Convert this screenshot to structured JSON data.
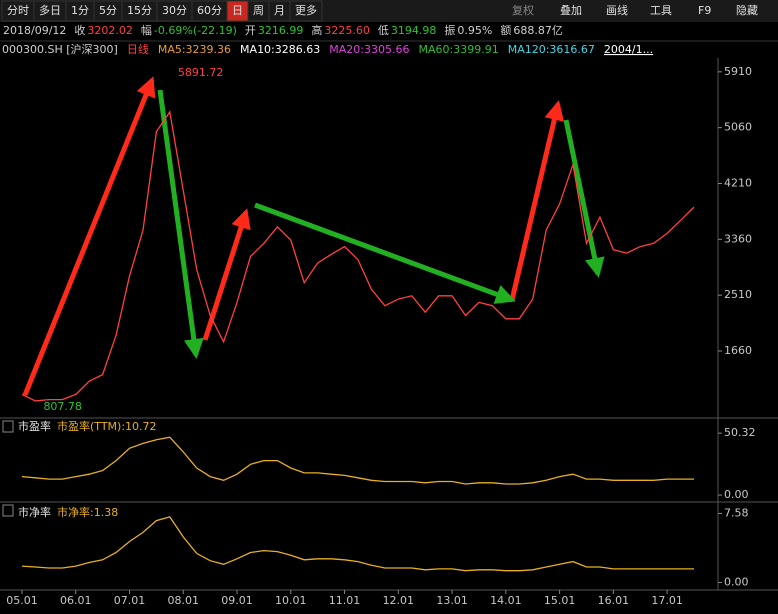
{
  "toolbar": {
    "left": [
      "分时",
      "多日",
      "1分",
      "5分",
      "15分",
      "30分",
      "60分",
      "日",
      "周",
      "月",
      "更多"
    ],
    "active": "日",
    "right": [
      "复权",
      "叠加",
      "画线",
      "工具",
      "F9",
      "隐藏"
    ]
  },
  "info_bar": [
    {
      "text": "2018/09/12",
      "color": "#d0d0d0"
    },
    {
      "text": "收",
      "color": "#d0d0d0"
    },
    {
      "text": "3202.02",
      "color": "#ff4040"
    },
    {
      "text": "幅",
      "color": "#d0d0d0"
    },
    {
      "text": "-0.69%(-22.19)",
      "color": "#2ec52e"
    },
    {
      "text": "开",
      "color": "#d0d0d0"
    },
    {
      "text": "3216.99",
      "color": "#2ec52e"
    },
    {
      "text": "高",
      "color": "#d0d0d0"
    },
    {
      "text": "3225.60",
      "color": "#ff4040"
    },
    {
      "text": "低",
      "color": "#d0d0d0"
    },
    {
      "text": "3194.98",
      "color": "#2ec52e"
    },
    {
      "text": "振",
      "color": "#d0d0d0"
    },
    {
      "text": "0.95%",
      "color": "#d0d0d0"
    },
    {
      "text": "额",
      "color": "#d0d0d0"
    },
    {
      "text": "688.87亿",
      "color": "#d0d0d0"
    }
  ],
  "legend_bar": [
    {
      "text": "000300.SH [沪深300]",
      "color": "#d0d0d0"
    },
    {
      "text": "日线",
      "color": "#ff4040"
    },
    {
      "text": "MA5:3239.36",
      "color": "#e8a030"
    },
    {
      "text": "MA10:3286.63",
      "color": "#ffffff"
    },
    {
      "text": "MA20:3305.66",
      "color": "#e040e0"
    },
    {
      "text": "MA60:3399.91",
      "color": "#30c030"
    },
    {
      "text": "MA120:3616.67",
      "color": "#40d8e8"
    },
    {
      "text": "2004/1...",
      "color": "#ffffff"
    }
  ],
  "chart_data": [
    {
      "type": "line",
      "categories": [
        "05.01",
        null,
        null,
        null,
        "06.01",
        null,
        null,
        null,
        "07.01",
        null,
        null,
        null,
        "08.01",
        null,
        null,
        null,
        "09.01",
        null,
        null,
        null,
        "10.01",
        null,
        null,
        null,
        "11.01",
        null,
        null,
        null,
        "12.01",
        null,
        null,
        null,
        "13.01",
        null,
        null,
        null,
        "14.01",
        null,
        null,
        null,
        "15.01",
        null,
        null,
        null,
        "16.01",
        null,
        null,
        null,
        "17.01",
        null,
        null
      ],
      "series": [
        {
          "name": "日线",
          "color": "#ff4040",
          "values": [
            1000,
            900,
            920,
            920,
            1000,
            1200,
            1300,
            1900,
            2800,
            3500,
            5000,
            5300,
            4100,
            2900,
            2200,
            1800,
            2400,
            3100,
            3300,
            3550,
            3350,
            2700,
            3000,
            3130,
            3250,
            3050,
            2600,
            2350,
            2450,
            2500,
            2250,
            2500,
            2500,
            2200,
            2400,
            2350,
            2150,
            2150,
            2450,
            3500,
            3900,
            4500,
            3300,
            3700,
            3200,
            3150,
            3250,
            3300,
            3450,
            3650,
            3850
          ]
        }
      ],
      "annotations": [
        {
          "value": 5891.72,
          "color": "#ff4040"
        },
        {
          "value": 807.78,
          "color": "#2ec52e"
        }
      ],
      "ylim": [
        640,
        6090
      ],
      "yticks": [
        1660,
        2510,
        3360,
        4210,
        5060,
        5910
      ],
      "grid": false
    },
    {
      "type": "line",
      "title": "市盈率",
      "series": [
        {
          "name": "市盈率(TTM):10.72",
          "color": "#e8b020",
          "values": [
            15,
            14,
            13,
            13,
            15,
            17,
            20,
            28,
            38,
            42,
            45,
            47,
            35,
            22,
            15,
            12,
            17,
            25,
            28,
            28,
            22,
            18,
            18,
            17,
            16,
            14,
            12,
            11,
            11,
            11,
            10,
            11,
            11,
            9,
            10,
            10,
            9,
            9,
            10,
            12,
            15,
            17,
            13,
            13,
            12,
            12,
            12,
            12,
            13,
            13,
            13
          ]
        }
      ],
      "ylim": [
        -4,
        61
      ],
      "yticks": [
        {
          "value": 0,
          "label": "0.00"
        },
        50.32
      ],
      "grid": false
    },
    {
      "type": "line",
      "title": "市净率",
      "series": [
        {
          "name": "市净率:1.38",
          "color": "#e8b020",
          "values": [
            1.8,
            1.7,
            1.6,
            1.6,
            1.8,
            2.2,
            2.5,
            3.3,
            4.5,
            5.5,
            6.8,
            7.2,
            5,
            3.2,
            2.4,
            2,
            2.6,
            3.3,
            3.5,
            3.4,
            3,
            2.5,
            2.6,
            2.6,
            2.5,
            2.3,
            1.9,
            1.6,
            1.6,
            1.6,
            1.4,
            1.5,
            1.5,
            1.3,
            1.4,
            1.4,
            1.3,
            1.3,
            1.4,
            1.7,
            2,
            2.3,
            1.7,
            1.7,
            1.5,
            1.5,
            1.5,
            1.5,
            1.5,
            1.5,
            1.5
          ]
        }
      ],
      "ylim": [
        -0.6,
        8.4
      ],
      "yticks": [
        {
          "value": 0,
          "label": "0.00"
        },
        7.58
      ],
      "grid": false
    }
  ]
}
